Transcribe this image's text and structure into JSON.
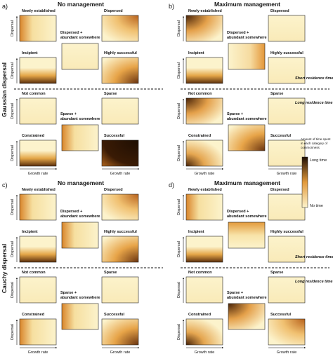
{
  "panels": [
    {
      "label": "a)",
      "title": "No management"
    },
    {
      "label": "b)",
      "title": "Maximum management"
    },
    {
      "label": "c)",
      "title": "No management"
    },
    {
      "label": "d)",
      "title": "Maximum management"
    }
  ],
  "subplot_titles": [
    [
      "Newly established"
    ],
    [
      "Dispersed"
    ],
    [
      "Dispersed +",
      "abundant somewhere"
    ],
    [
      "Incipient"
    ],
    [
      "Highly successful"
    ],
    [
      "Not common"
    ],
    [
      "Sparse"
    ],
    [
      "Sparse +",
      "abundant somewhere"
    ],
    [
      "Constrained"
    ],
    [
      "Successful"
    ]
  ],
  "axis_labels": {
    "y": "Dispersal",
    "x": "Growth rate"
  },
  "row_labels": [
    "Gaussian dispersal",
    "Cauchy dispersal"
  ],
  "residence_labels": [
    "Short residence time",
    "Long residence time"
  ],
  "legend": {
    "title": [
      "Amount of time spent",
      "in each category of",
      "commonness"
    ],
    "high": "Long time",
    "low": "No time"
  }
}
